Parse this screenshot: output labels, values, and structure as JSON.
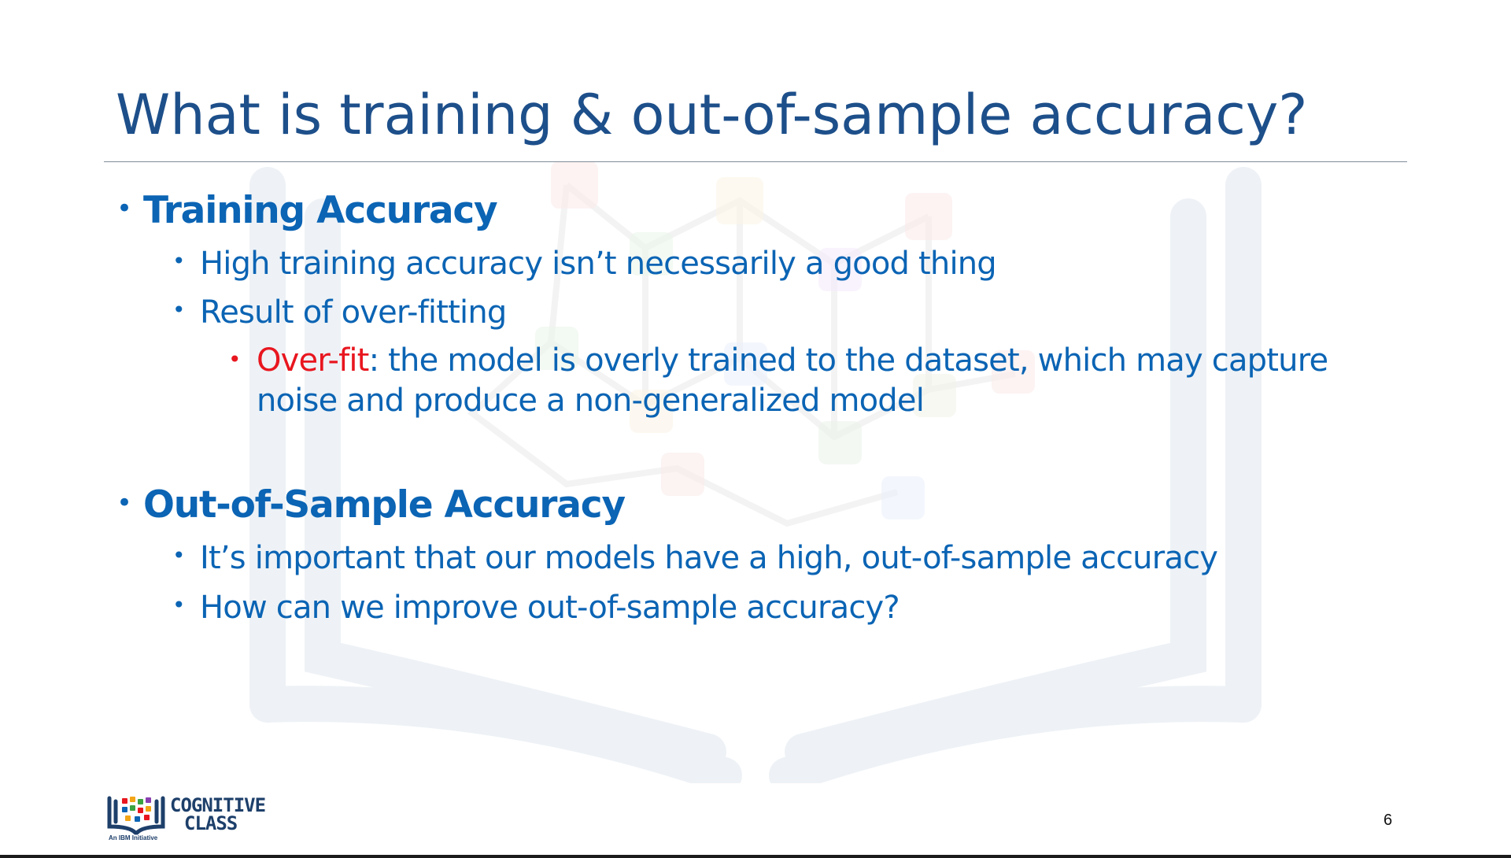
{
  "slide": {
    "title": "What is training & out-of-sample accuracy?",
    "page_number": "6"
  },
  "sections": {
    "training": {
      "heading": "Training Accuracy",
      "point1": "High training accuracy isn’t necessarily a good thing",
      "point2": "Result of over-fitting",
      "overfit_term": "Over-fit",
      "overfit_line1": ": the model is overly trained to the dataset, which may capture",
      "overfit_line2": "noise and produce a non-generalized model"
    },
    "out_of_sample": {
      "heading": "Out-of-Sample Accuracy",
      "point1": "It’s important that our models have a high, out-of-sample accuracy",
      "point2": "How can we improve out-of-sample accuracy?"
    }
  },
  "logo": {
    "line1": "COGNITIVE",
    "line2": "CLASS",
    "tagline": "An IBM Initiative"
  },
  "colors": {
    "title": "#1d4f8a",
    "body": "#0b64b4",
    "emphasis": "#e8161f"
  },
  "icons": {
    "bullet": "bullet-dot",
    "logo": "book-network-icon"
  }
}
